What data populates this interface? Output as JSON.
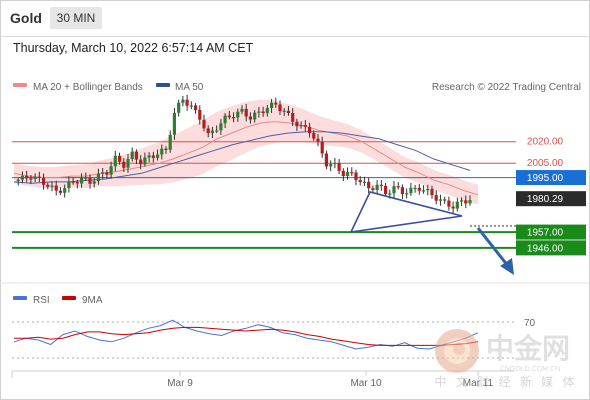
{
  "header": {
    "symbol": "Gold",
    "timeframe": "30 MIN",
    "datetime": "Thursday, March 10, 2022 6:57:14 AM CET"
  },
  "legend": {
    "ma20_label": "MA 20 + Bollinger Bands",
    "ma50_label": "MA 50",
    "ma20_color": "#f08a8a",
    "ma50_color": "#2e4f8f",
    "credit": "Research © 2022 Trading Central"
  },
  "rsi_legend": {
    "rsi_label": "RSI",
    "ma_label": "9MA",
    "rsi_color": "#4a72d4",
    "ma_color": "#cc0000"
  },
  "watermark": {
    "brand": "中金网",
    "domain": "CNGOLD.COM.CN",
    "tagline": "中 文 财 经 新 媒 体"
  },
  "chart_data": {
    "type": "line",
    "title": "",
    "y_range": [
      1925,
      2063
    ],
    "x_labels": [
      "Mar 9",
      "Mar 10",
      "Mar 11"
    ],
    "current_price": "1980.29",
    "levels": [
      {
        "label": "2020.00",
        "value": 2020.0,
        "kind": "resistance",
        "color": "#d9534f"
      },
      {
        "label": "2005.00",
        "value": 2005.0,
        "kind": "resistance",
        "color": "#d9534f"
      },
      {
        "label": "1995.00",
        "value": 1995.0,
        "kind": "pivot",
        "color": "#1a6fd6"
      },
      {
        "label": "1957.00",
        "value": 1957.0,
        "kind": "support",
        "color": "#1a8a1a"
      },
      {
        "label": "1946.00",
        "value": 1946.0,
        "kind": "support",
        "color": "#1a8a1a"
      }
    ],
    "price_path": [
      1993,
      1994,
      1996,
      1993,
      1990,
      1985,
      1988,
      1992,
      1994,
      1992,
      1996,
      1999,
      2008,
      2004,
      2011,
      2006,
      2009,
      2012,
      2014,
      2040,
      2050,
      2044,
      2037,
      2024,
      2030,
      2036,
      2039,
      2041,
      2037,
      2040,
      2044,
      2046,
      2041,
      2035,
      2030,
      2028,
      2018,
      2005,
      2003,
      1998,
      1997,
      1993,
      1987,
      1990,
      1984,
      1988,
      1985,
      1986,
      1988,
      1985,
      1981,
      1977,
      1975,
      1978,
      1980
    ],
    "ma20": [
      1998,
      1996,
      1995,
      1995,
      1996,
      1996,
      1998,
      1999,
      2001,
      2003,
      2005,
      2008,
      2012,
      2016,
      2022,
      2026,
      2030,
      2033,
      2034,
      2033,
      2031,
      2028,
      2026,
      2024,
      2020,
      2014,
      2008,
      2002,
      1998,
      1993,
      1990,
      1986,
      1983
    ],
    "ma50": [
      1992,
      1991,
      1992,
      1992,
      1993,
      1994,
      1996,
      1998,
      2002,
      2006,
      2010,
      2014,
      2018,
      2021,
      2024,
      2026,
      2027,
      2027,
      2026,
      2024,
      2022,
      2018,
      2014,
      2008,
      2004,
      2000
    ],
    "rsi": {
      "level_label": "70",
      "rsi_values": [
        48,
        52,
        50,
        45,
        56,
        60,
        54,
        50,
        48,
        52,
        58,
        63,
        66,
        72,
        64,
        60,
        57,
        55,
        60,
        63,
        67,
        64,
        58,
        56,
        52,
        50,
        48,
        44,
        40,
        42,
        45,
        43,
        47,
        41,
        40,
        44,
        48,
        52,
        58
      ],
      "ma_values": [
        52,
        52,
        53,
        51,
        52,
        56,
        59,
        59,
        57,
        56,
        57,
        58,
        61,
        63,
        64,
        64,
        63,
        62,
        61,
        60,
        61,
        62,
        61,
        59,
        56,
        54,
        51,
        49,
        47,
        45,
        44,
        44,
        44,
        44,
        44,
        44,
        45,
        46,
        48
      ]
    }
  }
}
